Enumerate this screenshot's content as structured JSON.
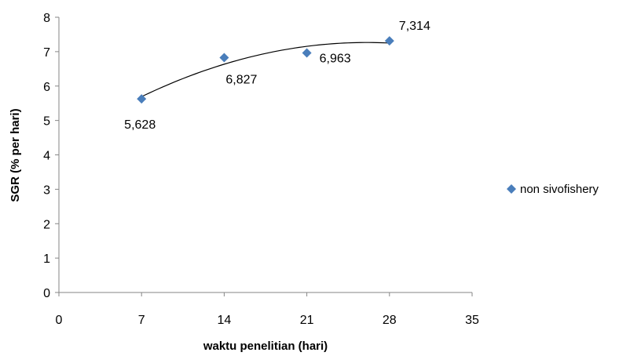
{
  "chart_data": {
    "type": "scatter",
    "xlabel": "waktu penelitian (hari)",
    "ylabel": "SGR (% per hari)",
    "xlim": [
      0,
      35
    ],
    "ylim": [
      0,
      8
    ],
    "x_ticks": [
      0,
      7,
      14,
      21,
      28,
      35
    ],
    "y_ticks": [
      0,
      1,
      2,
      3,
      4,
      5,
      6,
      7,
      8
    ],
    "x_tick_labels": [
      "0",
      "7",
      "14",
      "21",
      "28",
      "35"
    ],
    "y_tick_labels": [
      "0",
      "1",
      "2",
      "3",
      "4",
      "5",
      "6",
      "7",
      "8"
    ],
    "grid": false,
    "legend_position": "right",
    "trendline": "polynomial order 2",
    "series": [
      {
        "name": "non sivofishery",
        "color": "#4a7ebb",
        "marker": "diamond",
        "points": [
          {
            "x": 7,
            "y": 5.628,
            "label": "5,628"
          },
          {
            "x": 14,
            "y": 6.827,
            "label": "6,827"
          },
          {
            "x": 21,
            "y": 6.963,
            "label": "6,963"
          },
          {
            "x": 28,
            "y": 7.314,
            "label": "7,314"
          }
        ]
      }
    ]
  }
}
